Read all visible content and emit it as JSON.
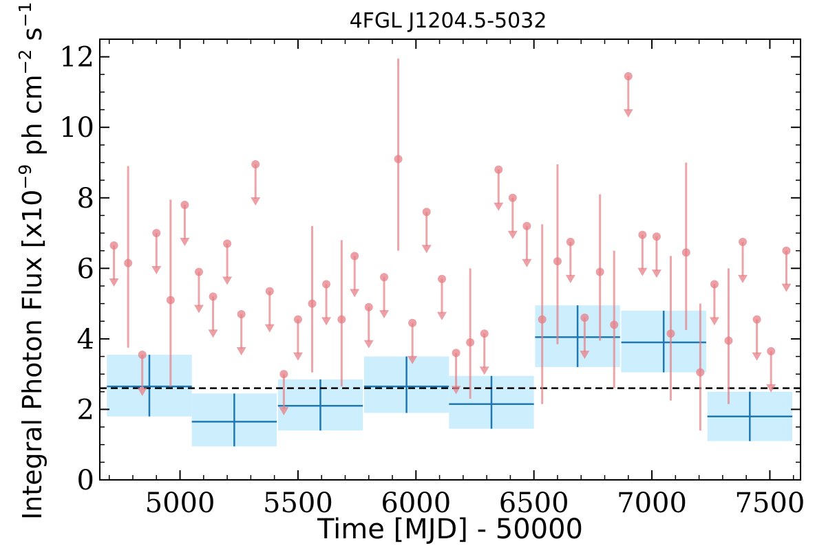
{
  "chart_data": {
    "type": "scatter",
    "title": "4FGL J1204.5-5032",
    "xlabel": "Time [MJD] - 50000",
    "ylabel_main": "Integral Photon Flux [x10",
    "ylabel_exp1": "−9",
    "ylabel_mid": " ph cm",
    "ylabel_exp2": "−2",
    "ylabel_mid2": " s",
    "ylabel_exp3": "−1",
    "ylabel_end": "]",
    "xlim": [
      4660,
      7630
    ],
    "ylim": [
      0,
      12.5
    ],
    "x_ticks": [
      5000,
      5500,
      6000,
      6500,
      7000,
      7500
    ],
    "x_tick_labels": [
      "5000",
      "5500",
      "6000",
      "6500",
      "7000",
      "7500"
    ],
    "y_ticks": [
      0,
      2,
      4,
      6,
      8,
      10,
      12
    ],
    "y_tick_labels": [
      "0",
      "2",
      "4",
      "6",
      "8",
      "10",
      "12"
    ],
    "grid": false,
    "average_flux": 2.6,
    "colors": {
      "detections": "#e57f85",
      "long_bins": "#1f77b4",
      "long_bins_fill": "#cdeefd",
      "average_line": "#000000"
    },
    "long_bins": [
      {
        "x": 4870,
        "xerr": 180,
        "y": 2.65,
        "ylo": 1.8,
        "yhi": 3.55
      },
      {
        "x": 5230,
        "xerr": 180,
        "y": 1.65,
        "ylo": 0.95,
        "yhi": 2.45
      },
      {
        "x": 5595,
        "xerr": 180,
        "y": 2.1,
        "ylo": 1.4,
        "yhi": 2.85
      },
      {
        "x": 5960,
        "xerr": 180,
        "y": 2.65,
        "ylo": 1.9,
        "yhi": 3.5
      },
      {
        "x": 6320,
        "xerr": 180,
        "y": 2.15,
        "ylo": 1.45,
        "yhi": 2.95
      },
      {
        "x": 6685,
        "xerr": 180,
        "y": 4.05,
        "ylo": 3.2,
        "yhi": 4.95
      },
      {
        "x": 7050,
        "xerr": 180,
        "y": 3.9,
        "ylo": 3.05,
        "yhi": 4.8
      },
      {
        "x": 7415,
        "xerr": 180,
        "y": 1.8,
        "ylo": 1.1,
        "yhi": 2.5
      }
    ],
    "detections": [
      {
        "x": 4780,
        "y": 6.15,
        "ylo": 3.75,
        "yhi": 8.9
      },
      {
        "x": 4960,
        "y": 5.1,
        "ylo": 2.65,
        "yhi": 7.95
      },
      {
        "x": 5560,
        "y": 5.0,
        "ylo": 3.05,
        "yhi": 7.2
      },
      {
        "x": 5685,
        "y": 4.55,
        "ylo": 2.65,
        "yhi": 6.8
      },
      {
        "x": 5925,
        "y": 9.1,
        "ylo": 6.5,
        "yhi": 11.95
      },
      {
        "x": 6230,
        "y": 3.9,
        "ylo": 2.3,
        "yhi": 6.0
      },
      {
        "x": 6535,
        "y": 4.55,
        "ylo": 2.15,
        "yhi": 7.25
      },
      {
        "x": 6600,
        "y": 6.2,
        "ylo": 3.85,
        "yhi": 8.95
      },
      {
        "x": 6780,
        "y": 5.9,
        "ylo": 3.95,
        "yhi": 8.1
      },
      {
        "x": 6840,
        "y": 4.4,
        "ylo": 2.6,
        "yhi": 6.5
      },
      {
        "x": 7080,
        "y": 4.15,
        "ylo": 2.25,
        "yhi": 6.35
      },
      {
        "x": 7145,
        "y": 6.45,
        "ylo": 4.25,
        "yhi": 9.0
      },
      {
        "x": 7205,
        "y": 3.05,
        "ylo": 1.4,
        "yhi": 5.0
      },
      {
        "x": 7325,
        "y": 3.95,
        "ylo": 2.15,
        "yhi": 6.0
      }
    ],
    "upper_limits": [
      {
        "x": 4720,
        "y": 6.65
      },
      {
        "x": 4840,
        "y": 3.55
      },
      {
        "x": 4900,
        "y": 7.0
      },
      {
        "x": 5020,
        "y": 7.8
      },
      {
        "x": 5080,
        "y": 5.9
      },
      {
        "x": 5140,
        "y": 5.2
      },
      {
        "x": 5200,
        "y": 6.7
      },
      {
        "x": 5260,
        "y": 4.7
      },
      {
        "x": 5320,
        "y": 8.95
      },
      {
        "x": 5380,
        "y": 5.35
      },
      {
        "x": 5440,
        "y": 3.0
      },
      {
        "x": 5500,
        "y": 4.55
      },
      {
        "x": 5620,
        "y": 5.55
      },
      {
        "x": 5740,
        "y": 6.35
      },
      {
        "x": 5800,
        "y": 4.9
      },
      {
        "x": 5865,
        "y": 5.75
      },
      {
        "x": 5985,
        "y": 4.45
      },
      {
        "x": 6045,
        "y": 7.6
      },
      {
        "x": 6110,
        "y": 5.7
      },
      {
        "x": 6170,
        "y": 3.6
      },
      {
        "x": 6290,
        "y": 4.15
      },
      {
        "x": 6350,
        "y": 8.8
      },
      {
        "x": 6410,
        "y": 8.0
      },
      {
        "x": 6470,
        "y": 7.2
      },
      {
        "x": 6655,
        "y": 6.75
      },
      {
        "x": 6715,
        "y": 4.6
      },
      {
        "x": 6900,
        "y": 11.45
      },
      {
        "x": 6960,
        "y": 6.95
      },
      {
        "x": 7020,
        "y": 6.9
      },
      {
        "x": 7265,
        "y": 5.55
      },
      {
        "x": 7385,
        "y": 6.75
      },
      {
        "x": 7445,
        "y": 4.55
      },
      {
        "x": 7505,
        "y": 3.65
      },
      {
        "x": 7570,
        "y": 6.5
      }
    ]
  }
}
